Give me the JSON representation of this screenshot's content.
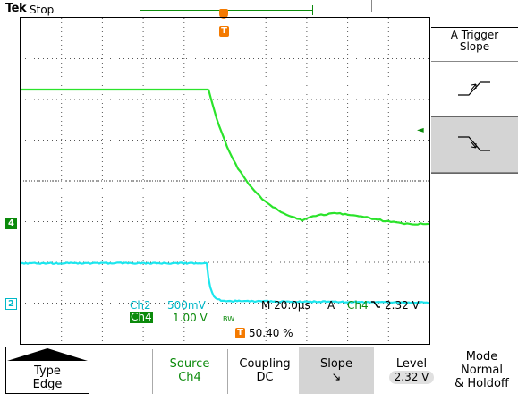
{
  "header": {
    "brand": "Tek",
    "status": "Stop"
  },
  "colors": {
    "ch4": "#0b8a0b",
    "ch4_trace": "#2be32b",
    "ch2_trace": "#1ce6ee",
    "trigger": "#f47a00",
    "grid": "#555555"
  },
  "markers": {
    "trigger_symbol": "T",
    "ch4": "4",
    "ch2": "2",
    "level_arrow": "◄"
  },
  "readout": {
    "ch2_label": "Ch2",
    "ch2_scale": "500mV",
    "ch4_label": "Ch4",
    "ch4_scale": "1.00 V",
    "bw_limit": "BW",
    "timebase": "M 20.0µs",
    "trigger_mode": "A",
    "trigger_source": "Ch4",
    "trigger_slope_icon": "falling-edge-icon",
    "trigger_level": "2.32 V",
    "trigger_position": "50.40 %"
  },
  "side_menu": {
    "title_line1": "A Trigger",
    "title_line2": "Slope",
    "options": [
      {
        "name": "rising",
        "icon": "rising-edge-icon",
        "selected": false
      },
      {
        "name": "falling",
        "icon": "falling-edge-icon",
        "selected": true
      }
    ]
  },
  "bottom_menu": {
    "type": {
      "label": "Type",
      "value": "Edge"
    },
    "source": {
      "label": "Source",
      "value": "Ch4"
    },
    "coupling": {
      "label": "Coupling",
      "value": "DC"
    },
    "slope": {
      "label": "Slope",
      "value": "↘"
    },
    "level": {
      "label": "Level",
      "value": "2.32 V"
    },
    "mode": {
      "label": "Mode",
      "line2": "Normal",
      "line3": "& Holdoff"
    }
  }
}
